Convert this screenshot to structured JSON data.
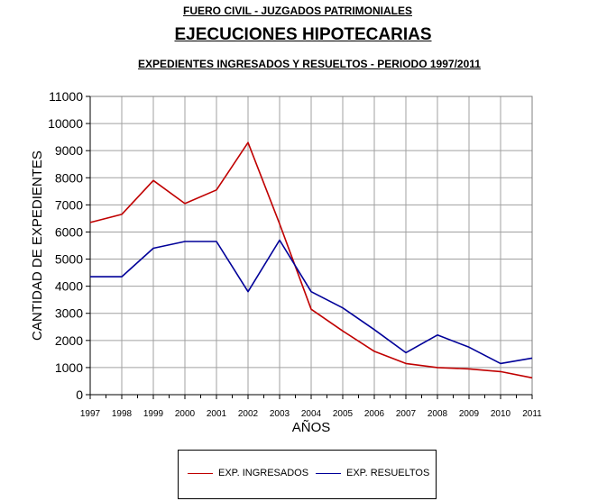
{
  "header": {
    "line1": "FUERO CIVIL - JUZGADOS PATRIMONIALES",
    "line2": "EJECUCIONES HIPOTECARIAS",
    "line3": "EXPEDIENTES INGRESADOS Y RESUELTOS - PERIODO 1997/2011"
  },
  "chart_data": {
    "type": "line",
    "x": [
      "1997",
      "1998",
      "1999",
      "2000",
      "2001",
      "2002",
      "2003",
      "2004",
      "2005",
      "2006",
      "2007",
      "2008",
      "2009",
      "2010",
      "2011"
    ],
    "xlabel": "AÑOS",
    "ylabel": "CANTIDAD DE EXPEDIENTES",
    "ylim": [
      0,
      11000
    ],
    "yticks": [
      0,
      1000,
      2000,
      3000,
      4000,
      5000,
      6000,
      7000,
      8000,
      9000,
      10000,
      11000
    ],
    "grid": true,
    "legend_position": "bottom",
    "series": [
      {
        "name": "EXP. INGRESADOS",
        "color": "#c00000",
        "values": [
          6350,
          6650,
          7900,
          7050,
          7550,
          9300,
          6300,
          3150,
          2350,
          1600,
          1150,
          1000,
          950,
          850,
          620
        ]
      },
      {
        "name": "EXP. RESUELTOS",
        "color": "#000099",
        "values": [
          4350,
          4350,
          5400,
          5650,
          5650,
          3800,
          5700,
          3800,
          3200,
          2400,
          1550,
          2200,
          1750,
          1150,
          1350
        ]
      }
    ]
  }
}
